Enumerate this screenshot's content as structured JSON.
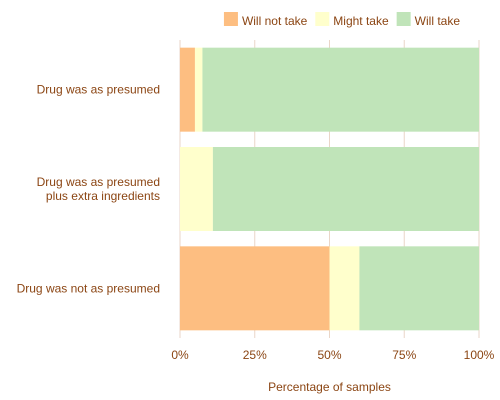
{
  "chart_data": {
    "type": "bar",
    "orientation": "horizontal",
    "stacked": true,
    "categories": [
      [
        "Drug was as presumed"
      ],
      [
        "Drug was as presumed",
        "plus extra ingredients"
      ],
      [
        "Drug was not as presumed"
      ]
    ],
    "series": [
      {
        "name": "Will not take",
        "color": "#fdbe81",
        "values": [
          5,
          0,
          50
        ]
      },
      {
        "name": "Might take",
        "color": "#ffffcc",
        "values": [
          2.5,
          11,
          10
        ]
      },
      {
        "name": "Will take",
        "color": "#c0e4b9",
        "values": [
          92.5,
          89,
          40
        ]
      }
    ],
    "xlabel": "Percentage of samples",
    "ylabel": "",
    "xlim": [
      0,
      100
    ],
    "xticks": [
      0,
      25,
      50,
      75,
      100
    ],
    "xtick_labels": [
      "0%",
      "25%",
      "50%",
      "75%",
      "100%"
    ],
    "grid": true,
    "legend_position": "top-right"
  }
}
